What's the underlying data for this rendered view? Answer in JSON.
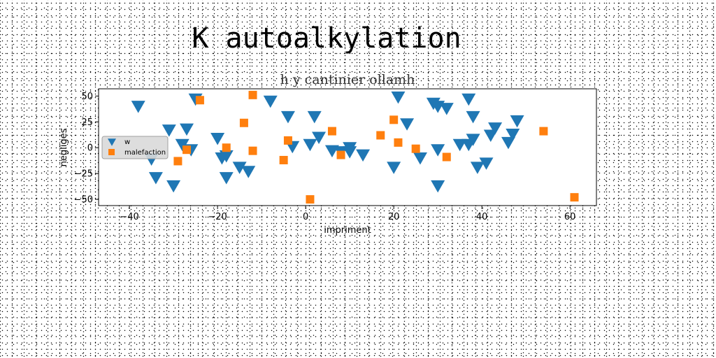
{
  "page": {
    "title": "K autoalkylation"
  },
  "chart_data": {
    "type": "scatter",
    "title": "h y cantinier ollamh",
    "xlabel": "impriment",
    "ylabel": "negliges",
    "xlim": [
      -47,
      66
    ],
    "ylim": [
      -56,
      57
    ],
    "xticks": [
      -40,
      -20,
      0,
      20,
      40,
      60
    ],
    "yticks": [
      -50,
      -25,
      0,
      25,
      50
    ],
    "legend_position": "center-left",
    "grid": false,
    "series": [
      {
        "name": "w",
        "marker": "triangle-down",
        "color": "#1f77b4",
        "points": [
          {
            "x": -38,
            "y": 40
          },
          {
            "x": -35,
            "y": -11
          },
          {
            "x": -34,
            "y": -29
          },
          {
            "x": -31,
            "y": 17
          },
          {
            "x": -30,
            "y": -37
          },
          {
            "x": -28,
            "y": 3
          },
          {
            "x": -27,
            "y": 18
          },
          {
            "x": -26,
            "y": -2
          },
          {
            "x": -25,
            "y": 47
          },
          {
            "x": -20,
            "y": 9
          },
          {
            "x": -19,
            "y": -10
          },
          {
            "x": -18,
            "y": -8
          },
          {
            "x": -18,
            "y": -29
          },
          {
            "x": -15,
            "y": -19
          },
          {
            "x": -13,
            "y": -23
          },
          {
            "x": -8,
            "y": 45
          },
          {
            "x": -4,
            "y": 30
          },
          {
            "x": -3,
            "y": 1
          },
          {
            "x": 1,
            "y": 3
          },
          {
            "x": 2,
            "y": 30
          },
          {
            "x": 3,
            "y": 10
          },
          {
            "x": 6,
            "y": -3
          },
          {
            "x": 8,
            "y": -4
          },
          {
            "x": 10,
            "y": 0
          },
          {
            "x": 10,
            "y": -4
          },
          {
            "x": 13,
            "y": -7
          },
          {
            "x": 20,
            "y": -19
          },
          {
            "x": 21,
            "y": 49
          },
          {
            "x": 23,
            "y": 23
          },
          {
            "x": 26,
            "y": -10
          },
          {
            "x": 29,
            "y": 43
          },
          {
            "x": 30,
            "y": 40
          },
          {
            "x": 30,
            "y": -2
          },
          {
            "x": 30,
            "y": -37
          },
          {
            "x": 32,
            "y": 38
          },
          {
            "x": 35,
            "y": 3
          },
          {
            "x": 37,
            "y": 47
          },
          {
            "x": 37,
            "y": 3
          },
          {
            "x": 38,
            "y": 30
          },
          {
            "x": 38,
            "y": 8
          },
          {
            "x": 39,
            "y": -19
          },
          {
            "x": 41,
            "y": -15
          },
          {
            "x": 42,
            "y": 12
          },
          {
            "x": 43,
            "y": 19
          },
          {
            "x": 46,
            "y": 5
          },
          {
            "x": 47,
            "y": 13
          },
          {
            "x": 48,
            "y": 26
          }
        ]
      },
      {
        "name": "malefaction",
        "marker": "square",
        "color": "#ff7f0e",
        "points": [
          {
            "x": -29,
            "y": -13
          },
          {
            "x": -27,
            "y": -2
          },
          {
            "x": -24,
            "y": 46
          },
          {
            "x": -18,
            "y": 0
          },
          {
            "x": -14,
            "y": 24
          },
          {
            "x": -12,
            "y": 51
          },
          {
            "x": -12,
            "y": -3
          },
          {
            "x": -5,
            "y": -12
          },
          {
            "x": -4,
            "y": 7
          },
          {
            "x": 1,
            "y": -50
          },
          {
            "x": 6,
            "y": 16
          },
          {
            "x": 8,
            "y": -7
          },
          {
            "x": 17,
            "y": 12
          },
          {
            "x": 20,
            "y": 27
          },
          {
            "x": 21,
            "y": 5
          },
          {
            "x": 25,
            "y": -1
          },
          {
            "x": 32,
            "y": -9
          },
          {
            "x": 54,
            "y": 16
          },
          {
            "x": 61,
            "y": -48
          }
        ]
      }
    ]
  }
}
